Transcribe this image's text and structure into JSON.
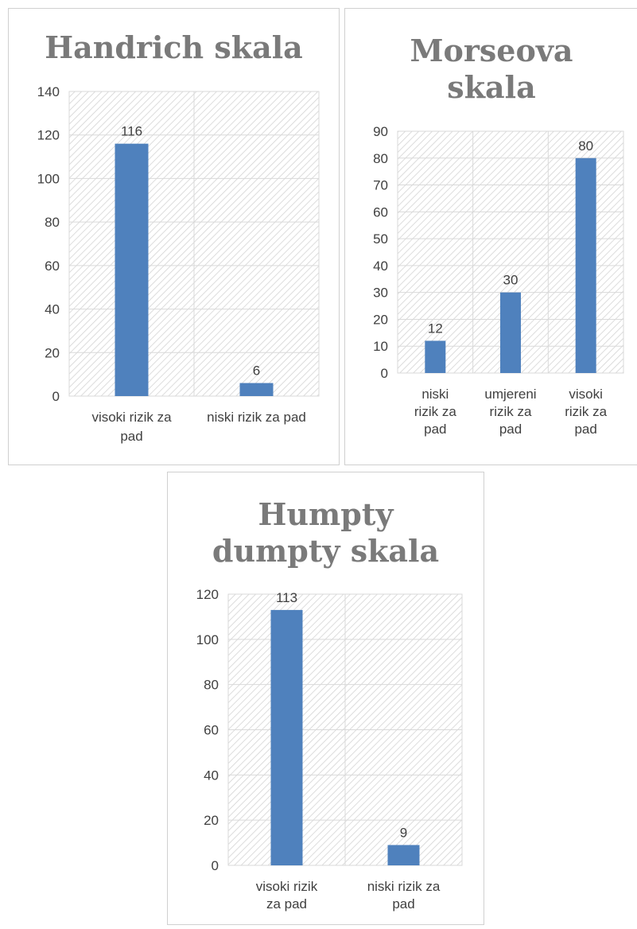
{
  "chart_data": [
    {
      "type": "bar",
      "title": "Handrich skala",
      "categories": [
        "visoki rizik za pad",
        "niski rizik za pad"
      ],
      "values": [
        116,
        6
      ],
      "ylim": [
        0,
        140
      ],
      "yticks": [
        0,
        20,
        40,
        60,
        80,
        100,
        120,
        140
      ],
      "grid": true,
      "legend": "none",
      "bar_color": "#4f81bd"
    },
    {
      "type": "bar",
      "title": "Morseova skala",
      "categories": [
        "niski rizik za pad",
        "umjereni rizik za pad",
        "visoki rizik za pad"
      ],
      "values": [
        12,
        30,
        80
      ],
      "ylim": [
        0,
        90
      ],
      "yticks": [
        0,
        10,
        20,
        30,
        40,
        50,
        60,
        70,
        80,
        90
      ],
      "grid": true,
      "legend": "none",
      "bar_color": "#4f81bd"
    },
    {
      "type": "bar",
      "title": "Humpty dumpty skala",
      "categories": [
        "visoki rizik za pad",
        "niski rizik za pad"
      ],
      "values": [
        113,
        9
      ],
      "ylim": [
        0,
        120
      ],
      "yticks": [
        0,
        20,
        40,
        60,
        80,
        100,
        120
      ],
      "grid": true,
      "legend": "none",
      "bar_color": "#4f81bd"
    }
  ]
}
